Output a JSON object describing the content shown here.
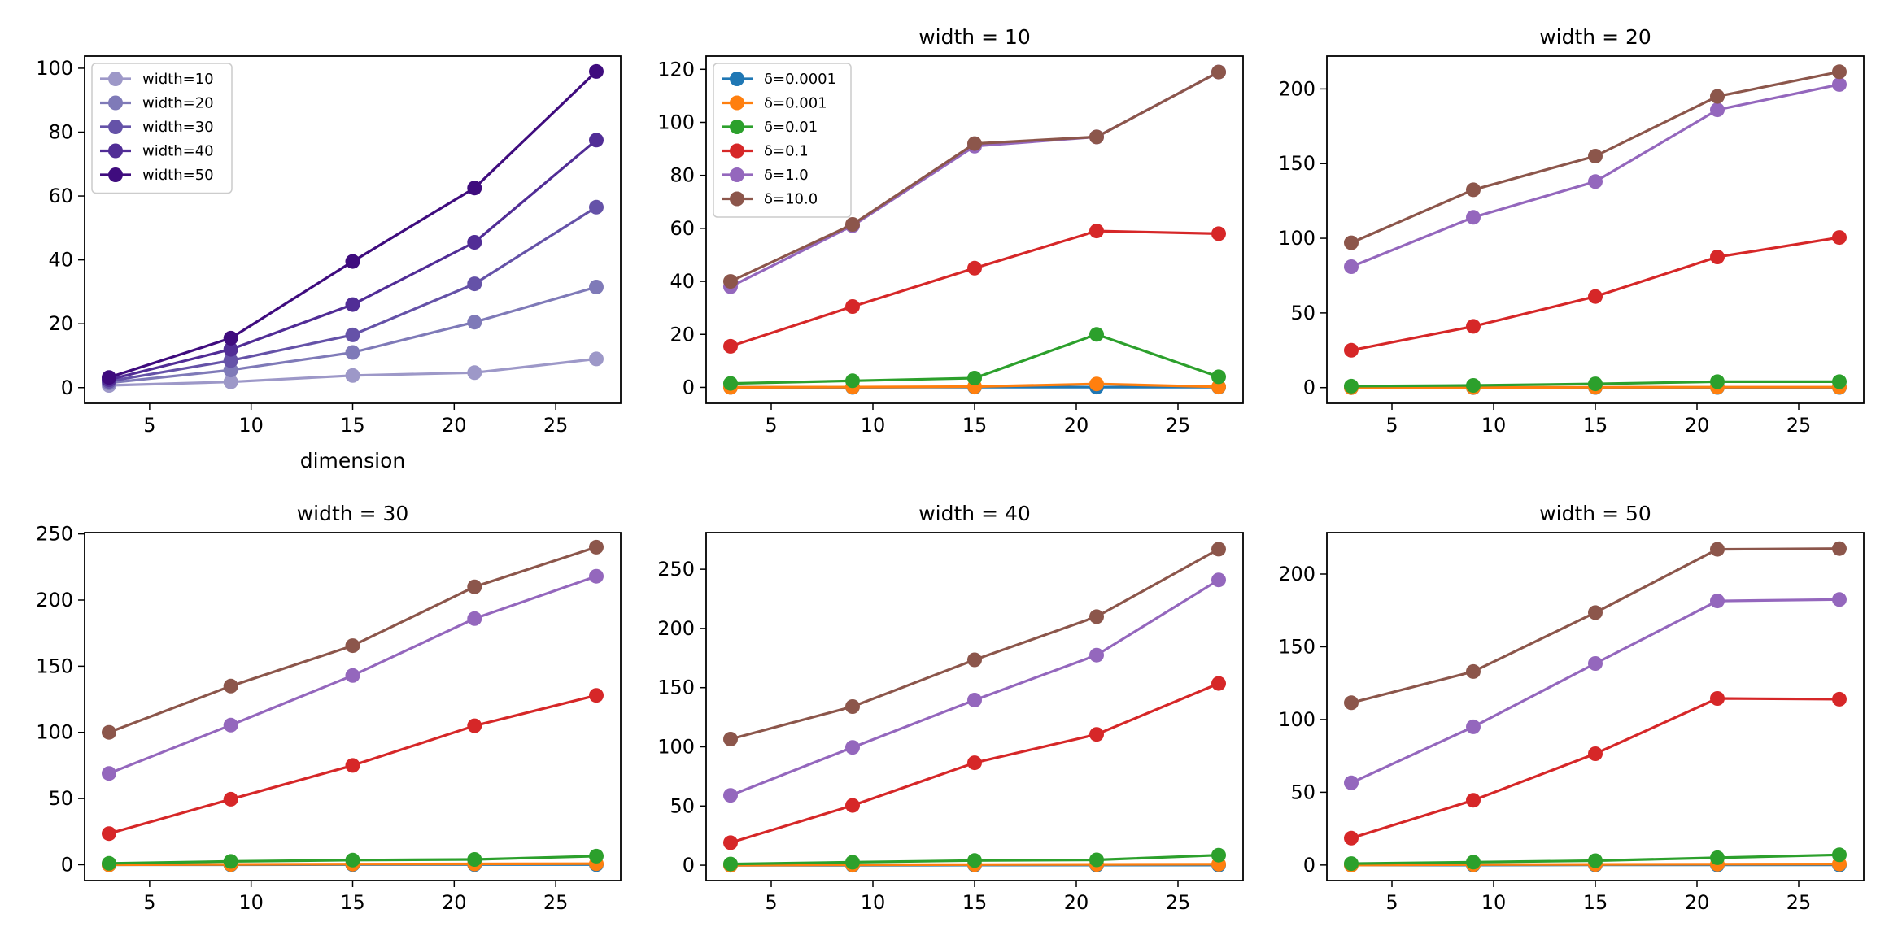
{
  "chart_data": [
    {
      "type": "line",
      "title": "",
      "xlabel": "dimension",
      "ylabel": "",
      "xlim": [
        1.8,
        28.2
      ],
      "ylim": [
        -4.9,
        103.8
      ],
      "xticks": [
        5,
        10,
        15,
        20,
        25
      ],
      "yticks": [
        0,
        20,
        40,
        60,
        80,
        100
      ],
      "legend": "top-left",
      "x": [
        3,
        9,
        15,
        21,
        27
      ],
      "series": [
        {
          "name": "width=10",
          "color": "#9d98c8",
          "values": [
            0.7,
            1.8,
            3.8,
            4.7,
            9.0
          ]
        },
        {
          "name": "width=20",
          "color": "#7f7ab8",
          "values": [
            1.5,
            5.5,
            11.0,
            20.5,
            31.5
          ]
        },
        {
          "name": "width=30",
          "color": "#6552a8",
          "values": [
            2.0,
            8.5,
            16.5,
            32.5,
            56.5
          ]
        },
        {
          "name": "width=40",
          "color": "#512d96",
          "values": [
            2.5,
            12.0,
            26.0,
            45.5,
            77.5
          ]
        },
        {
          "name": "width=50",
          "color": "#3f0c7e",
          "values": [
            3.2,
            15.5,
            39.5,
            62.5,
            99.0
          ]
        }
      ]
    },
    {
      "type": "line",
      "title": "width = 10",
      "xlabel": "",
      "ylabel": "",
      "xlim": [
        1.8,
        28.2
      ],
      "ylim": [
        -6,
        125
      ],
      "xticks": [
        5,
        10,
        15,
        20,
        25
      ],
      "yticks": [
        0,
        20,
        40,
        60,
        80,
        100,
        120
      ],
      "legend": "top-left",
      "x": [
        3,
        9,
        15,
        21,
        27
      ],
      "series": [
        {
          "name": "δ=0.0001",
          "color": "#1f77b4",
          "values": [
            0.0,
            0.0,
            0.1,
            0.1,
            0.1
          ]
        },
        {
          "name": "δ=0.001",
          "color": "#ff7f0e",
          "values": [
            0.0,
            0.1,
            0.3,
            1.3,
            0.2
          ]
        },
        {
          "name": "δ=0.01",
          "color": "#2ca02c",
          "values": [
            1.5,
            2.5,
            3.5,
            20.0,
            4.0
          ]
        },
        {
          "name": "δ=0.1",
          "color": "#d62728",
          "values": [
            15.5,
            30.5,
            45.0,
            59.0,
            58.0
          ]
        },
        {
          "name": "δ=1.0",
          "color": "#9467bd",
          "values": [
            38.0,
            61.0,
            91.0,
            94.5,
            119.0
          ]
        },
        {
          "name": "δ=10.0",
          "color": "#8c564b",
          "values": [
            40.0,
            61.5,
            92.0,
            94.5,
            119.0
          ]
        }
      ]
    },
    {
      "type": "line",
      "title": "width = 20",
      "xlabel": "",
      "ylabel": "",
      "xlim": [
        1.8,
        28.2
      ],
      "ylim": [
        -10.5,
        222
      ],
      "xticks": [
        5,
        10,
        15,
        20,
        25
      ],
      "yticks": [
        0,
        50,
        100,
        150,
        200
      ],
      "legend": "none",
      "x": [
        3,
        9,
        15,
        21,
        27
      ],
      "series": [
        {
          "name": "δ=0.0001",
          "color": "#1f77b4",
          "values": [
            0.0,
            0.0,
            0.1,
            0.1,
            0.1
          ]
        },
        {
          "name": "δ=0.001",
          "color": "#ff7f0e",
          "values": [
            0.0,
            0.1,
            0.2,
            0.3,
            0.3
          ]
        },
        {
          "name": "δ=0.01",
          "color": "#2ca02c",
          "values": [
            1.0,
            1.5,
            2.5,
            4.0,
            4.0
          ]
        },
        {
          "name": "δ=0.1",
          "color": "#d62728",
          "values": [
            25.0,
            41.0,
            61.0,
            87.5,
            100.5
          ]
        },
        {
          "name": "δ=1.0",
          "color": "#9467bd",
          "values": [
            81.0,
            114.0,
            138.0,
            186.0,
            203.0
          ]
        },
        {
          "name": "δ=10.0",
          "color": "#8c564b",
          "values": [
            97.0,
            132.5,
            155.0,
            195.0,
            211.5
          ]
        }
      ]
    },
    {
      "type": "line",
      "title": "width = 30",
      "xlabel": "",
      "ylabel": "",
      "xlim": [
        1.8,
        28.2
      ],
      "ylim": [
        -12,
        251
      ],
      "xticks": [
        5,
        10,
        15,
        20,
        25
      ],
      "yticks": [
        0,
        50,
        100,
        150,
        200,
        250
      ],
      "legend": "none",
      "x": [
        3,
        9,
        15,
        21,
        27
      ],
      "series": [
        {
          "name": "δ=0.0001",
          "color": "#1f77b4",
          "values": [
            0.0,
            0.0,
            0.1,
            0.1,
            0.1
          ]
        },
        {
          "name": "δ=0.001",
          "color": "#ff7f0e",
          "values": [
            0.0,
            0.2,
            0.5,
            0.6,
            0.8
          ]
        },
        {
          "name": "δ=0.01",
          "color": "#2ca02c",
          "values": [
            1.0,
            2.5,
            3.5,
            4.0,
            6.5
          ]
        },
        {
          "name": "δ=0.1",
          "color": "#d62728",
          "values": [
            23.5,
            49.5,
            75.0,
            105.0,
            128.0
          ]
        },
        {
          "name": "δ=1.0",
          "color": "#9467bd",
          "values": [
            69.0,
            105.5,
            143.0,
            186.0,
            218.0
          ]
        },
        {
          "name": "δ=10.0",
          "color": "#8c564b",
          "values": [
            100.0,
            135.0,
            165.5,
            210.0,
            240.0
          ]
        }
      ]
    },
    {
      "type": "line",
      "title": "width = 40",
      "xlabel": "",
      "ylabel": "",
      "xlim": [
        1.8,
        28.2
      ],
      "ylim": [
        -13,
        281
      ],
      "xticks": [
        5,
        10,
        15,
        20,
        25
      ],
      "yticks": [
        0,
        50,
        100,
        150,
        200,
        250
      ],
      "legend": "none",
      "x": [
        3,
        9,
        15,
        21,
        27
      ],
      "series": [
        {
          "name": "δ=0.0001",
          "color": "#1f77b4",
          "values": [
            0.0,
            0.0,
            0.1,
            0.1,
            0.1
          ]
        },
        {
          "name": "δ=0.001",
          "color": "#ff7f0e",
          "values": [
            0.0,
            0.3,
            0.5,
            0.7,
            0.9
          ]
        },
        {
          "name": "δ=0.01",
          "color": "#2ca02c",
          "values": [
            1.0,
            2.5,
            4.0,
            4.5,
            8.5
          ]
        },
        {
          "name": "δ=0.1",
          "color": "#d62728",
          "values": [
            19.0,
            50.5,
            86.5,
            110.5,
            153.5
          ]
        },
        {
          "name": "δ=1.0",
          "color": "#9467bd",
          "values": [
            59.0,
            99.5,
            139.5,
            177.5,
            241.0
          ]
        },
        {
          "name": "δ=10.0",
          "color": "#8c564b",
          "values": [
            106.5,
            134.0,
            173.5,
            210.0,
            267.0
          ]
        }
      ]
    },
    {
      "type": "line",
      "title": "width = 50",
      "xlabel": "",
      "ylabel": "",
      "xlim": [
        1.8,
        28.2
      ],
      "ylim": [
        -10.7,
        228.5
      ],
      "xticks": [
        5,
        10,
        15,
        20,
        25
      ],
      "yticks": [
        0,
        50,
        100,
        150,
        200
      ],
      "legend": "none",
      "x": [
        3,
        9,
        15,
        21,
        27
      ],
      "series": [
        {
          "name": "δ=0.0001",
          "color": "#1f77b4",
          "values": [
            0.0,
            0.0,
            0.1,
            0.1,
            0.1
          ]
        },
        {
          "name": "δ=0.001",
          "color": "#ff7f0e",
          "values": [
            0.0,
            0.3,
            0.4,
            0.6,
            0.7
          ]
        },
        {
          "name": "δ=0.01",
          "color": "#2ca02c",
          "values": [
            1.0,
            2.0,
            3.0,
            5.0,
            7.0
          ]
        },
        {
          "name": "δ=0.1",
          "color": "#d62728",
          "values": [
            18.5,
            44.5,
            76.5,
            114.5,
            114.0
          ]
        },
        {
          "name": "δ=1.0",
          "color": "#9467bd",
          "values": [
            56.5,
            95.0,
            138.5,
            181.5,
            182.5
          ]
        },
        {
          "name": "δ=10.0",
          "color": "#8c564b",
          "values": [
            111.5,
            133.0,
            173.5,
            217.0,
            217.5
          ]
        }
      ]
    }
  ]
}
